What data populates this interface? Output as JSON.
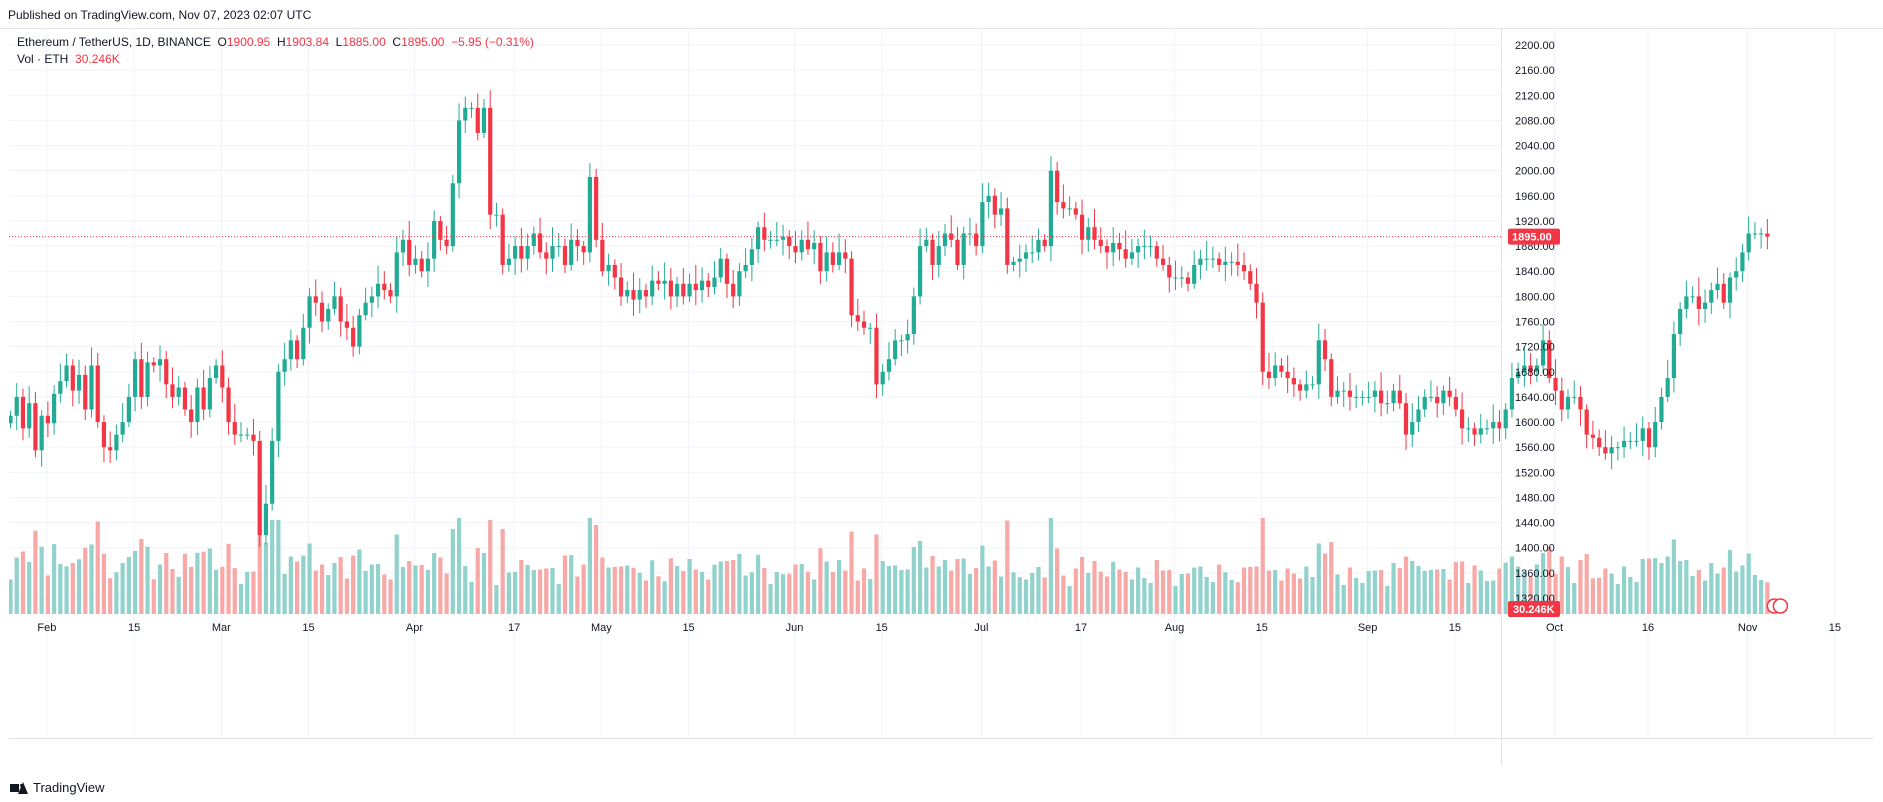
{
  "header": {
    "published": "Published on TradingView.com, Nov 07, 2023 02:07 UTC"
  },
  "legend": {
    "symbol": "Ethereum / TetherUS, 1D, BINANCE",
    "o_label": "O",
    "o_value": "1900.95",
    "h_label": "H",
    "h_value": "1903.84",
    "l_label": "L",
    "l_value": "1885.00",
    "c_label": "C",
    "c_value": "1895.00",
    "change": "−5.95 (−0.31%)",
    "vol_label": "Vol · ETH",
    "vol_value": "30.246K"
  },
  "footer": {
    "brand": "TradingView"
  },
  "colors": {
    "up": "#22ab94",
    "down": "#f23645",
    "up_vol": "#92d2cc",
    "down_vol": "#f7a9a7",
    "grid": "#f0f3fa",
    "axis_text": "#131722"
  },
  "chart_data": {
    "type": "candlestick",
    "title": "Ethereum / TetherUS, 1D, BINANCE",
    "price_axis": {
      "min": 1300,
      "max": 2220,
      "ticks": [
        2200,
        2160,
        2120,
        2080,
        2040,
        2000,
        1960,
        1920,
        1880,
        1840,
        1800,
        1760,
        1720,
        1680,
        1640,
        1600,
        1560,
        1520,
        1480,
        1440,
        1400,
        1360,
        1320
      ]
    },
    "tick_labels": [
      "2200.00",
      "2160.00",
      "2120.00",
      "2080.00",
      "2040.00",
      "2000.00",
      "1960.00",
      "1920.00",
      "1880.00",
      "1840.00",
      "1800.00",
      "1760.00",
      "1720.00",
      "1680.00",
      "1640.00",
      "1600.00",
      "1560.00",
      "1520.00",
      "1480.00",
      "1440.00",
      "1400.00",
      "1360.00",
      "1320.00"
    ],
    "last_price": 1895.0,
    "last_price_label": "1895.00",
    "last_volume_label": "30.246K",
    "x_labels": [
      {
        "text": "Feb",
        "day": 0
      },
      {
        "text": "15",
        "day": 14
      },
      {
        "text": "Mar",
        "day": 28
      },
      {
        "text": "15",
        "day": 42
      },
      {
        "text": "Apr",
        "day": 59
      },
      {
        "text": "17",
        "day": 75
      },
      {
        "text": "May",
        "day": 89
      },
      {
        "text": "15",
        "day": 103
      },
      {
        "text": "Jun",
        "day": 120
      },
      {
        "text": "15",
        "day": 134
      },
      {
        "text": "Jul",
        "day": 150
      },
      {
        "text": "17",
        "day": 166
      },
      {
        "text": "Aug",
        "day": 181
      },
      {
        "text": "15",
        "day": 195
      },
      {
        "text": "Sep",
        "day": 212
      },
      {
        "text": "15",
        "day": 226
      },
      {
        "text": "Oct",
        "day": 242
      },
      {
        "text": "16",
        "day": 257
      },
      {
        "text": "Nov",
        "day": 273
      },
      {
        "text": "15",
        "day": 287
      }
    ],
    "first_day_offset": -6,
    "close": [
      1610,
      1640,
      1590,
      1630,
      1555,
      1610,
      1598,
      1645,
      1665,
      1690,
      1650,
      1675,
      1620,
      1690,
      1600,
      1560,
      1555,
      1580,
      1600,
      1640,
      1700,
      1640,
      1695,
      1690,
      1700,
      1660,
      1640,
      1655,
      1620,
      1600,
      1655,
      1620,
      1670,
      1690,
      1655,
      1600,
      1580,
      1580,
      1580,
      1570,
      1420,
      1470,
      1570,
      1680,
      1700,
      1730,
      1700,
      1750,
      1800,
      1790,
      1760,
      1780,
      1800,
      1760,
      1750,
      1720,
      1770,
      1790,
      1800,
      1820,
      1810,
      1800,
      1870,
      1890,
      1850,
      1860,
      1840,
      1860,
      1920,
      1890,
      1880,
      1980,
      2080,
      2100,
      2100,
      2060,
      2100,
      1930,
      1930,
      1850,
      1860,
      1880,
      1860,
      1880,
      1900,
      1870,
      1860,
      1880,
      1880,
      1850,
      1890,
      1880,
      1870,
      1990,
      1890,
      1840,
      1850,
      1830,
      1800,
      1810,
      1795,
      1810,
      1800,
      1825,
      1820,
      1825,
      1800,
      1820,
      1800,
      1820,
      1810,
      1825,
      1815,
      1830,
      1860,
      1820,
      1800,
      1840,
      1850,
      1875,
      1910,
      1890,
      1890,
      1890,
      1895,
      1880,
      1870,
      1890,
      1875,
      1885,
      1840,
      1870,
      1850,
      1870,
      1860,
      1770,
      1760,
      1750,
      1750,
      1660,
      1680,
      1700,
      1730,
      1730,
      1740,
      1800,
      1880,
      1890,
      1850,
      1880,
      1900,
      1890,
      1850,
      1900,
      1900,
      1880,
      1950,
      1960,
      1930,
      1940,
      1850,
      1855,
      1860,
      1870,
      1870,
      1890,
      1880,
      2000,
      1950,
      1940,
      1940,
      1930,
      1890,
      1910,
      1890,
      1880,
      1870,
      1885,
      1875,
      1860,
      1870,
      1880,
      1880,
      1880,
      1860,
      1850,
      1830,
      1830,
      1830,
      1820,
      1850,
      1860,
      1860,
      1860,
      1850,
      1855,
      1855,
      1850,
      1840,
      1820,
      1790,
      1680,
      1670,
      1690,
      1680,
      1670,
      1660,
      1650,
      1660,
      1660,
      1730,
      1700,
      1640,
      1650,
      1650,
      1640,
      1640,
      1640,
      1640,
      1650,
      1630,
      1630,
      1650,
      1630,
      1580,
      1600,
      1620,
      1640,
      1640,
      1630,
      1650,
      1640,
      1620,
      1590,
      1590,
      1580,
      1590,
      1590,
      1600,
      1590,
      1620,
      1670,
      1680,
      1690,
      1680,
      1690,
      1730,
      1670,
      1650,
      1620,
      1640,
      1640,
      1620,
      1580,
      1575,
      1560,
      1550,
      1560,
      1560,
      1570,
      1570,
      1570,
      1590,
      1560,
      1600,
      1640,
      1670,
      1740,
      1780,
      1800,
      1800,
      1780,
      1790,
      1810,
      1820,
      1790,
      1830,
      1840,
      1870,
      1900,
      1900,
      1900,
      1895
    ]
  }
}
